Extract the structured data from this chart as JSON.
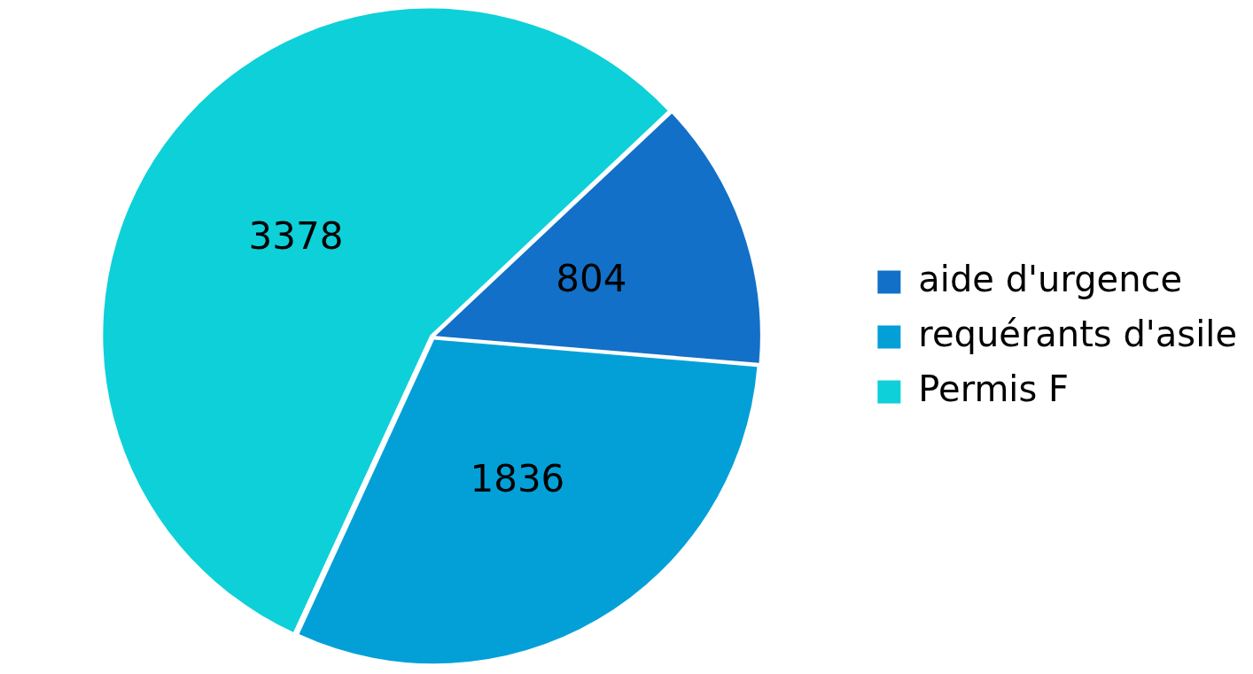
{
  "chart_data": {
    "type": "pie",
    "categories": [
      "aide d'urgence",
      "requérants d'asile",
      "Permis F"
    ],
    "values": [
      804,
      1836,
      3378
    ],
    "colors": [
      "#1270c8",
      "#03a0d8",
      "#0ed0d8"
    ],
    "data_labels": true,
    "legend": "right"
  }
}
